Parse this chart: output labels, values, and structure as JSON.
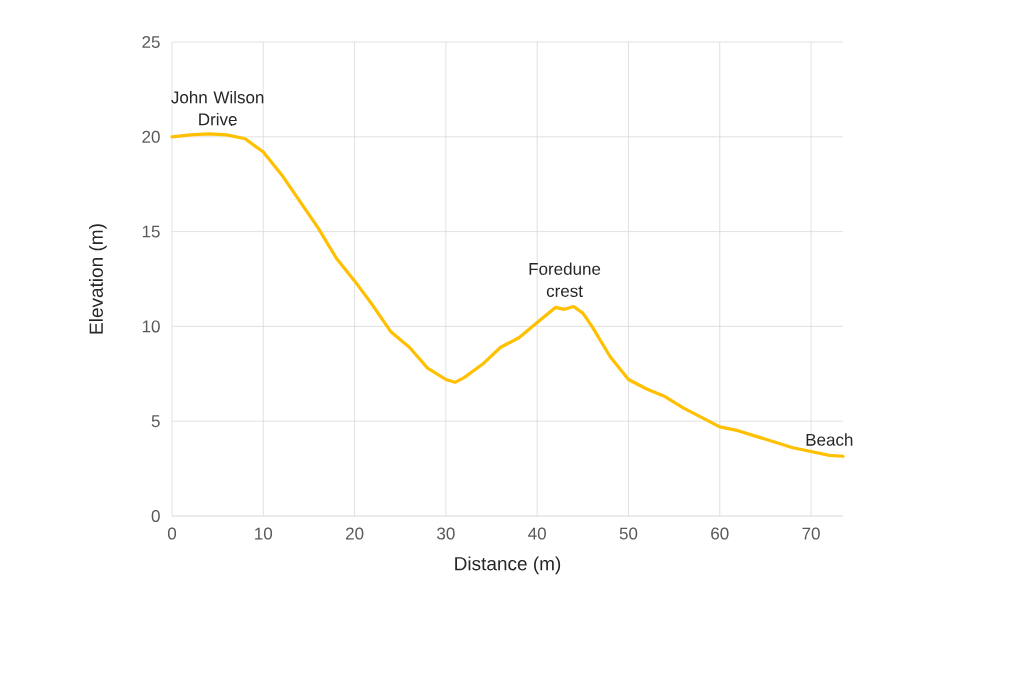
{
  "chart_data": {
    "type": "line",
    "xlabel": "Distance (m)",
    "ylabel": "Elevation (m)",
    "x": [
      0,
      2,
      4,
      6,
      8,
      10,
      12,
      14,
      16,
      18,
      20,
      22,
      24,
      26,
      28,
      30,
      31,
      32,
      34,
      36,
      38,
      40,
      42,
      43,
      44,
      45,
      46,
      48,
      50,
      52,
      54,
      56,
      58,
      60,
      62,
      64,
      66,
      68,
      70,
      72,
      73.5
    ],
    "series": [
      {
        "color": "#ffc000",
        "values": [
          20.0,
          20.1,
          20.15,
          20.1,
          19.9,
          19.2,
          18.0,
          16.6,
          15.2,
          13.6,
          12.4,
          11.1,
          9.7,
          8.9,
          7.8,
          7.2,
          7.05,
          7.3,
          8.0,
          8.9,
          9.4,
          10.2,
          11.0,
          10.9,
          11.05,
          10.7,
          10.0,
          8.4,
          7.2,
          6.7,
          6.3,
          5.7,
          5.2,
          4.7,
          4.5,
          4.2,
          3.9,
          3.6,
          3.4,
          3.2,
          3.15
        ]
      }
    ],
    "xlim": [
      0,
      73.5
    ],
    "ylim": [
      0,
      25
    ],
    "xticks": [
      0,
      10,
      20,
      30,
      40,
      50,
      60,
      70
    ],
    "yticks": [
      0,
      5,
      10,
      15,
      20,
      25
    ],
    "grid": true,
    "marker": "none",
    "line_style": "solid",
    "annotations": [
      {
        "text": "John Wilson Drive",
        "x": 5,
        "y": 20.1
      },
      {
        "text": "Foredune crest",
        "x": 43,
        "y": 11.05
      },
      {
        "text": "Beach",
        "x": 72,
        "y": 3.2
      }
    ]
  }
}
